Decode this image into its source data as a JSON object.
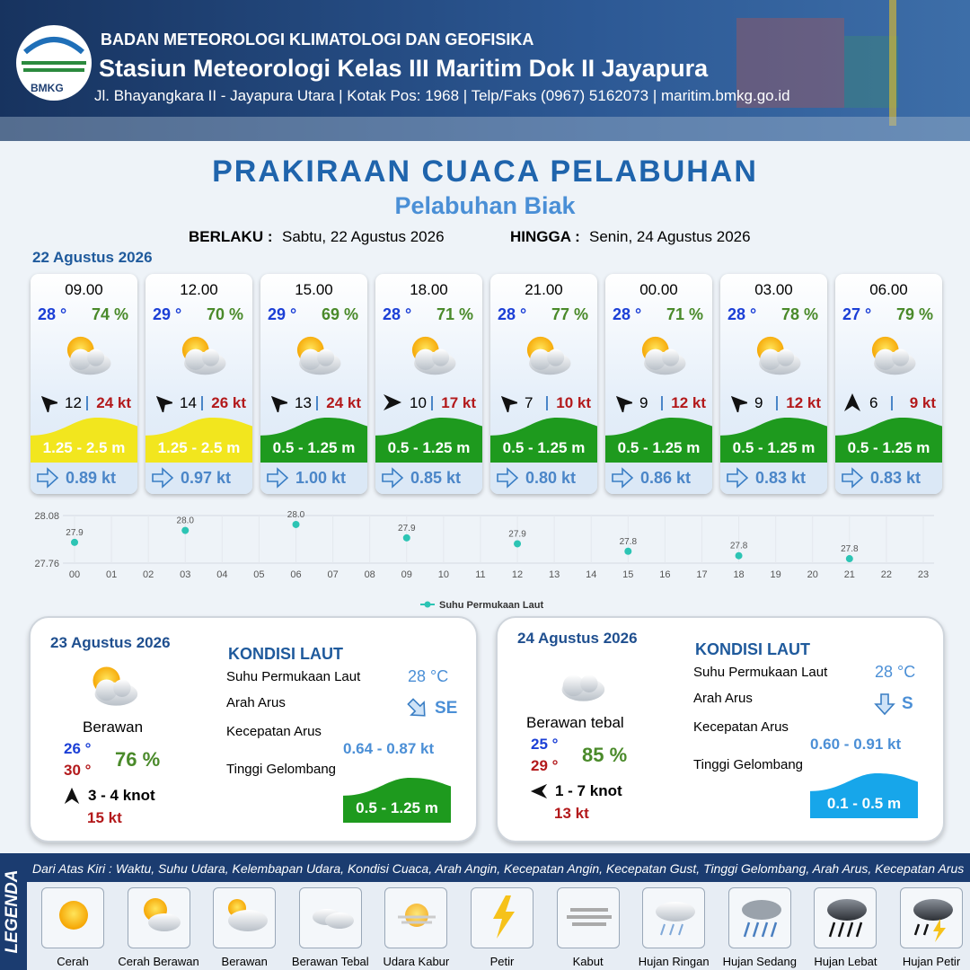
{
  "header": {
    "logo": "BMKG",
    "org": "BADAN METEOROLOGI KLIMATOLOGI DAN GEOFISIKA",
    "station": "Stasiun Meteorologi Kelas III Maritim Dok II Jayapura",
    "address": "Jl. Bhayangkara II - Jayapura Utara | Kotak Pos: 1968 | Telp/Faks (0967) 5162073 | maritim.bmkg.go.id"
  },
  "title": "PRAKIRAAN CUACA PELABUHAN",
  "subtitle": "Pelabuhan Biak",
  "validity": {
    "from_label": "BERLAKU :",
    "from": "Sabtu, 22 Agustus 2026",
    "to_label": "HINGGA :",
    "to": "Senin, 24 Agustus 2026"
  },
  "day1": {
    "date": "22 Agustus 2026",
    "forecasts": [
      {
        "time": "09.00",
        "temp": "28 °",
        "humidity": "74 %",
        "wind_arrow_deg": -45,
        "wind": "12",
        "gust": "24 kt",
        "wave": "1.25 - 2.5 m",
        "wave_color": "#f2e61e",
        "current": "0.89 kt"
      },
      {
        "time": "12.00",
        "temp": "29 °",
        "humidity": "70 %",
        "wind_arrow_deg": -45,
        "wind": "14",
        "gust": "26 kt",
        "wave": "1.25 - 2.5 m",
        "wave_color": "#f2e61e",
        "current": "0.97 kt"
      },
      {
        "time": "15.00",
        "temp": "29 °",
        "humidity": "69 %",
        "wind_arrow_deg": -45,
        "wind": "13",
        "gust": "24 kt",
        "wave": "0.5 - 1.25 m",
        "wave_color": "#1e9a1e",
        "current": "1.00 kt"
      },
      {
        "time": "18.00",
        "temp": "28 °",
        "humidity": "71 %",
        "wind_arrow_deg": 90,
        "wind": "10",
        "gust": "17 kt",
        "wave": "0.5 - 1.25 m",
        "wave_color": "#1e9a1e",
        "current": "0.85 kt"
      },
      {
        "time": "21.00",
        "temp": "28 °",
        "humidity": "77 %",
        "wind_arrow_deg": -45,
        "wind": "7",
        "gust": "10 kt",
        "wave": "0.5 - 1.25 m",
        "wave_color": "#1e9a1e",
        "current": "0.80 kt"
      },
      {
        "time": "00.00",
        "temp": "28 °",
        "humidity": "71 %",
        "wind_arrow_deg": -45,
        "wind": "9",
        "gust": "12 kt",
        "wave": "0.5 - 1.25 m",
        "wave_color": "#1e9a1e",
        "current": "0.86 kt"
      },
      {
        "time": "03.00",
        "temp": "28 °",
        "humidity": "78 %",
        "wind_arrow_deg": -45,
        "wind": "9",
        "gust": "12 kt",
        "wave": "0.5 - 1.25 m",
        "wave_color": "#1e9a1e",
        "current": "0.83 kt"
      },
      {
        "time": "06.00",
        "temp": "27 °",
        "humidity": "79 %",
        "wind_arrow_deg": 0,
        "wind": "6",
        "gust": "9 kt",
        "wave": "0.5 - 1.25 m",
        "wave_color": "#1e9a1e",
        "current": "0.83 kt"
      }
    ]
  },
  "chart_data": {
    "type": "scatter",
    "x": [
      0,
      3,
      6,
      9,
      12,
      15,
      18,
      21
    ],
    "series": [
      {
        "name": "Suhu Permukaan Laut",
        "color": "#2cc4b4",
        "values": [
          27.9,
          27.98,
          28.02,
          27.93,
          27.89,
          27.84,
          27.81,
          27.79
        ],
        "value_labels": [
          "27.9",
          "28.0",
          "28.0",
          "27.9",
          "27.9",
          "27.8",
          "27.8",
          "27.8"
        ]
      }
    ],
    "xlim": [
      0,
      23
    ],
    "xticks": [
      {
        "value": 0,
        "label": "00"
      },
      {
        "value": 1,
        "label": "01"
      },
      {
        "value": 2,
        "label": "02"
      },
      {
        "value": 3,
        "label": "03"
      },
      {
        "value": 4,
        "label": "04"
      },
      {
        "value": 5,
        "label": "05"
      },
      {
        "value": 6,
        "label": "06"
      },
      {
        "value": 7,
        "label": "07"
      },
      {
        "value": 8,
        "label": "08"
      },
      {
        "value": 9,
        "label": "09"
      },
      10,
      11,
      12,
      13,
      14,
      15,
      16,
      17,
      18,
      19,
      20,
      21,
      22,
      23
    ],
    "ylim": [
      27.76,
      28.08
    ],
    "yticks": [
      27.76,
      28.08
    ],
    "grid": true
  },
  "days": [
    {
      "date": "23 Agustus 2026",
      "condition": "Berawan",
      "temp_min": "26 °",
      "temp_max": "30 °",
      "humidity": "76 %",
      "wind_arrow_deg": 0,
      "wind": "3  - 4 knot",
      "gust": "15 kt",
      "sea_heading": "KONDISI LAUT",
      "sst_label": "Suhu Permukaan Laut",
      "sst": "28 °C",
      "current_dir_label": "Arah Arus",
      "current_arrow_deg": 45,
      "current_dir": "SE",
      "current_speed_label": "Kecepatan Arus",
      "current_speed": "0.64 -  0.87 kt",
      "wave_label": "Tinggi Gelombang",
      "wave": "0.5 - 1.25 m",
      "wave_color": "#1e9a1e"
    },
    {
      "date": "24 Agustus 2026",
      "condition": "Berawan tebal",
      "temp_min": "25 °",
      "temp_max": "29 °",
      "humidity": "85 %",
      "wind_arrow_deg": -90,
      "wind": "1  - 7 knot",
      "gust": "13 kt",
      "sea_heading": "KONDISI LAUT",
      "sst_label": "Suhu Permukaan Laut",
      "sst": "28 °C",
      "current_dir_label": "Arah Arus",
      "current_arrow_deg": 90,
      "current_dir": "S",
      "current_speed_label": "Kecepatan Arus",
      "current_speed": "0.60  - 0.91 kt",
      "wave_label": "Tinggi Gelombang",
      "wave": "0.1 - 0.5 m",
      "wave_color": "#17a6ea"
    }
  ],
  "legend": {
    "heading": "LEGENDA",
    "description": "Dari Atas Kiri : Waktu, Suhu Udara, Kelembapan Udara, Kondisi Cuaca, Arah Angin, Kecepatan Angin, Kecepatan Gust, Tinggi Gelombang, Arah Arus, Kecepatan Arus",
    "items": [
      "Cerah",
      "Cerah Berawan",
      "Berawan",
      "Berawan Tebal",
      "Udara Kabur",
      "Petir",
      "Kabut",
      "Hujan Ringan",
      "Hujan Sedang",
      "Hujan Lebat",
      "Hujan Petir"
    ]
  }
}
